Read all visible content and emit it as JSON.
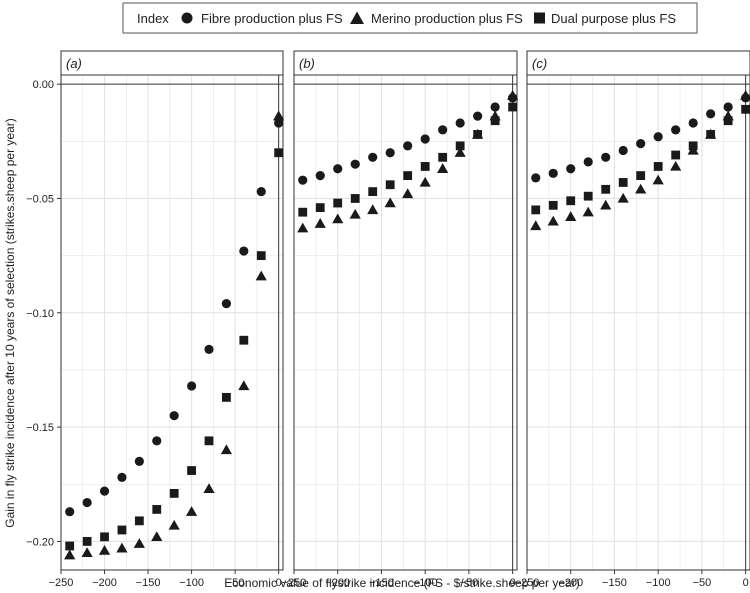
{
  "legend": {
    "title": "Index",
    "items": [
      {
        "label": "Fibre production plus FS",
        "marker": "circle"
      },
      {
        "label": "Merino production plus FS",
        "marker": "triangle"
      },
      {
        "label": "Dual purpose plus FS",
        "marker": "square"
      }
    ]
  },
  "y_axis_label": "Gain in fly strike incidence after 10 years of selection (strikes.sheep per year)",
  "x_axis_label": "Economic value of flystrike incidence (FS - $/strike.sheep per year)",
  "colors": {
    "marker": "#1a1a1a",
    "grid": "#e3e3e3",
    "zero_line": "#3a3a3a",
    "frame": "#333333"
  },
  "chart_data": {
    "type": "scatter",
    "xlabel": "Economic value of flystrike incidence (FS - $/strike.sheep per year)",
    "ylabel": "Gain in fly strike incidence after 10 years of selection (strikes.sheep per year)",
    "xlim": [
      -250,
      5
    ],
    "ylim": [
      -0.2125,
      0.004
    ],
    "x_ticks": [
      -250,
      -200,
      -150,
      -100,
      -50,
      0
    ],
    "y_ticks": [
      0.0,
      -0.05,
      -0.1,
      -0.15,
      -0.2
    ],
    "x_tick_labels": [
      "−250",
      "−200",
      "−150",
      "−100",
      "−50",
      "0"
    ],
    "y_tick_labels": [
      "0.00",
      "−0.05",
      "−0.10",
      "−0.15",
      "−0.20"
    ],
    "grid": true,
    "legend_position": "top",
    "x": [
      -240,
      -220,
      -200,
      -180,
      -160,
      -140,
      -120,
      -100,
      -80,
      -60,
      -40,
      -20,
      0
    ],
    "panels": [
      {
        "label": "(a)",
        "series": [
          {
            "name": "Fibre production plus FS",
            "marker": "circle",
            "values": [
              -0.187,
              -0.183,
              -0.178,
              -0.172,
              -0.165,
              -0.156,
              -0.145,
              -0.132,
              -0.116,
              -0.096,
              -0.073,
              -0.047,
              -0.017
            ]
          },
          {
            "name": "Merino production plus FS",
            "marker": "triangle",
            "values": [
              -0.206,
              -0.205,
              -0.204,
              -0.203,
              -0.201,
              -0.198,
              -0.193,
              -0.187,
              -0.177,
              -0.16,
              -0.132,
              -0.084,
              -0.014
            ]
          },
          {
            "name": "Dual purpose plus FS",
            "marker": "square",
            "values": [
              -0.202,
              -0.2,
              -0.198,
              -0.195,
              -0.191,
              -0.186,
              -0.179,
              -0.169,
              -0.156,
              -0.137,
              -0.112,
              -0.075,
              -0.03
            ]
          }
        ]
      },
      {
        "label": "(b)",
        "series": [
          {
            "name": "Fibre production plus FS",
            "marker": "circle",
            "values": [
              -0.042,
              -0.04,
              -0.037,
              -0.035,
              -0.032,
              -0.03,
              -0.027,
              -0.024,
              -0.02,
              -0.017,
              -0.014,
              -0.01,
              -0.006
            ]
          },
          {
            "name": "Merino production plus FS",
            "marker": "triangle",
            "values": [
              -0.063,
              -0.061,
              -0.059,
              -0.057,
              -0.055,
              -0.052,
              -0.048,
              -0.043,
              -0.037,
              -0.03,
              -0.022,
              -0.014,
              -0.005
            ]
          },
          {
            "name": "Dual purpose plus FS",
            "marker": "square",
            "values": [
              -0.056,
              -0.054,
              -0.052,
              -0.05,
              -0.047,
              -0.044,
              -0.04,
              -0.036,
              -0.032,
              -0.027,
              -0.022,
              -0.016,
              -0.01
            ]
          }
        ]
      },
      {
        "label": "(c)",
        "series": [
          {
            "name": "Fibre production plus FS",
            "marker": "circle",
            "values": [
              -0.041,
              -0.039,
              -0.037,
              -0.034,
              -0.032,
              -0.029,
              -0.026,
              -0.023,
              -0.02,
              -0.017,
              -0.013,
              -0.01,
              -0.006
            ]
          },
          {
            "name": "Merino production plus FS",
            "marker": "triangle",
            "values": [
              -0.062,
              -0.06,
              -0.058,
              -0.056,
              -0.053,
              -0.05,
              -0.046,
              -0.042,
              -0.036,
              -0.029,
              -0.022,
              -0.014,
              -0.005
            ]
          },
          {
            "name": "Dual purpose plus FS",
            "marker": "square",
            "values": [
              -0.055,
              -0.053,
              -0.051,
              -0.049,
              -0.046,
              -0.043,
              -0.04,
              -0.036,
              -0.031,
              -0.027,
              -0.022,
              -0.016,
              -0.011
            ]
          }
        ]
      }
    ]
  }
}
